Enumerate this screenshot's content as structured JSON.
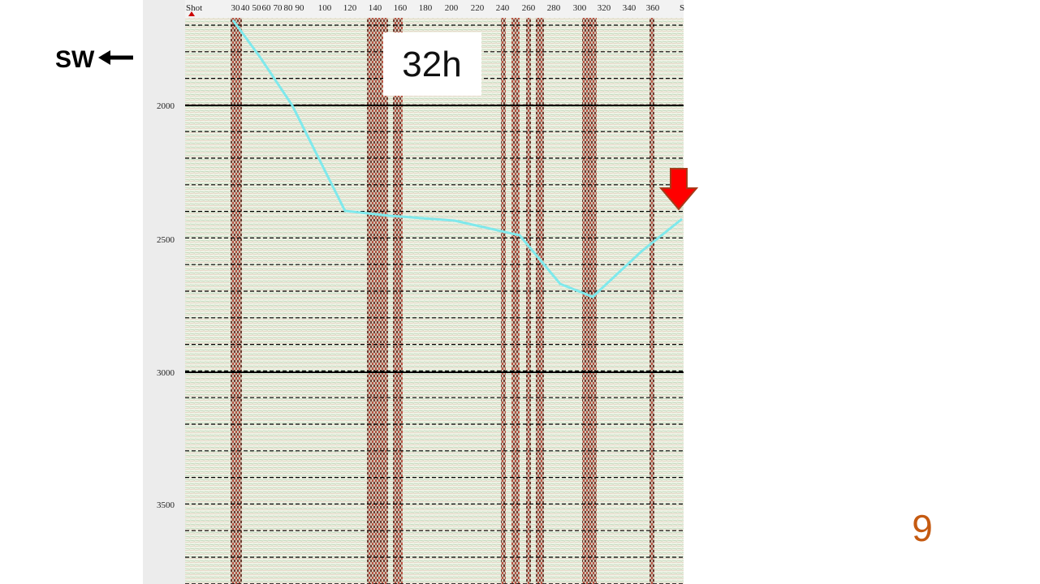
{
  "slide": {
    "direction_label": "SW",
    "time_label": "32h",
    "page_number": "9"
  },
  "seismic_panel": {
    "axis_title": "Shot",
    "shot_labels": [
      "30",
      "40",
      "50",
      "60",
      "70",
      "80",
      "90",
      "100",
      "120",
      "140",
      "160",
      "180",
      "200",
      "220",
      "240",
      "260",
      "280",
      "300",
      "320",
      "340",
      "360",
      "S"
    ],
    "depth_labels": [
      "2000",
      "2500",
      "3000",
      "3500"
    ]
  }
}
